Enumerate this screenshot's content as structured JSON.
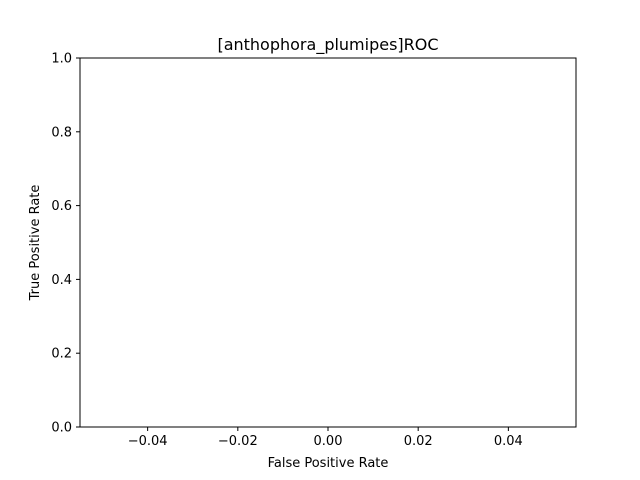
{
  "chart_data": {
    "type": "line",
    "title": "[anthophora_plumipes]ROC",
    "xlabel": "False Positive Rate",
    "ylabel": "True Positive Rate",
    "xlim": [
      -0.055,
      0.055
    ],
    "ylim": [
      0.0,
      1.0
    ],
    "xticks": [
      -0.04,
      -0.02,
      0.0,
      0.02,
      0.04
    ],
    "xtick_labels": [
      "−0.04",
      "−0.02",
      "0.00",
      "0.02",
      "0.04"
    ],
    "yticks": [
      0.0,
      0.2,
      0.4,
      0.6,
      0.8,
      1.0
    ],
    "ytick_labels": [
      "0.0",
      "0.2",
      "0.4",
      "0.6",
      "0.8",
      "1.0"
    ],
    "grid": false,
    "series": []
  }
}
